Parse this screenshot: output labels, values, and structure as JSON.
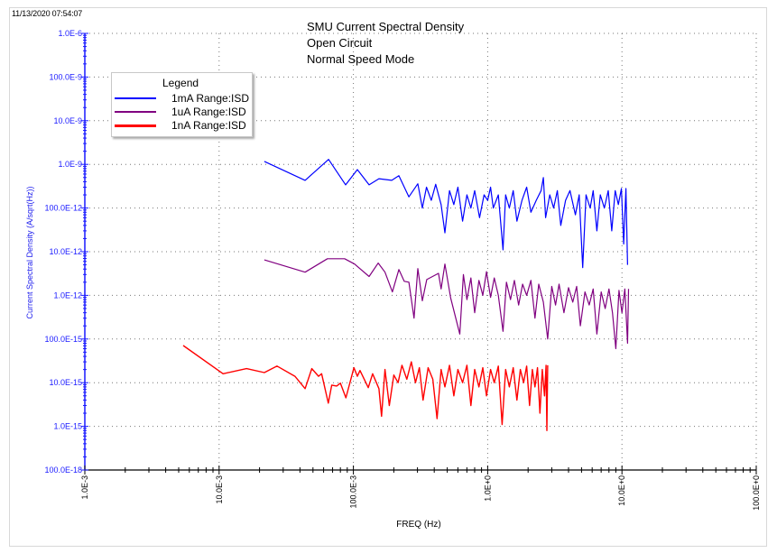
{
  "timestamp": "11/13/2020 07:54:07",
  "chart_data": {
    "type": "line",
    "title": [
      "SMU Current Spectral Density",
      "Open Circuit",
      "Normal Speed Mode"
    ],
    "xlabel": "FREQ (Hz)",
    "ylabel": "Current Spectral Density (A/sqrt(Hz))",
    "x_scale": "log",
    "y_scale": "log",
    "xlim": [
      0.001,
      100
    ],
    "ylim": [
      1e-16,
      1e-06
    ],
    "x_tick_values": [
      0.001,
      0.01,
      0.1,
      1,
      10,
      100
    ],
    "x_tick_labels": [
      "1.0E-3",
      "10.0E-3",
      "100.0E-3",
      "1.0E+0",
      "10.0E+0",
      "100.0E+0"
    ],
    "y_tick_values": [
      1e-06,
      1e-07,
      1e-08,
      1e-09,
      1e-10,
      1e-11,
      1e-12,
      1e-13,
      1e-14,
      1e-15,
      1e-16
    ],
    "y_tick_labels": [
      "1.0E-6",
      "100.0E-9",
      "10.0E-9",
      "1.0E-9",
      "100.0E-12",
      "10.0E-12",
      "1.0E-12",
      "100.0E-15",
      "10.0E-15",
      "1.0E-15",
      "100.0E-18"
    ],
    "grid": true,
    "legend": {
      "title": "Legend",
      "placement": "top-left"
    },
    "colors": {
      "x_axis": "#000000",
      "y_axis": "#1a1aff",
      "grid": "#888888"
    },
    "series": [
      {
        "name": "1mA Range:ISD",
        "color": "#0000ff",
        "points": [
          [
            0.0217,
            1.17e-09
          ],
          [
            0.0437,
            4.3e-10
          ],
          [
            0.0653,
            1.3e-09
          ],
          [
            0.0875,
            3.4e-10
          ],
          [
            0.107,
            7.6e-10
          ],
          [
            0.131,
            3.4e-10
          ],
          [
            0.155,
            4.7e-10
          ],
          [
            0.193,
            4.3e-10
          ],
          [
            0.218,
            5.5e-10
          ],
          [
            0.259,
            1.8e-10
          ],
          [
            0.302,
            3.6e-10
          ],
          [
            0.326,
            1e-10
          ],
          [
            0.35,
            3e-10
          ],
          [
            0.38,
            1.5e-10
          ],
          [
            0.41,
            3.5e-10
          ],
          [
            0.45,
            1.2e-10
          ],
          [
            0.48,
            2.7e-11
          ],
          [
            0.52,
            2.5e-10
          ],
          [
            0.56,
            1.2e-10
          ],
          [
            0.6,
            3e-10
          ],
          [
            0.65,
            5e-11
          ],
          [
            0.7,
            2e-10
          ],
          [
            0.75,
            1e-10
          ],
          [
            0.8,
            2.5e-10
          ],
          [
            0.87,
            6e-11
          ],
          [
            0.94,
            2e-10
          ],
          [
            1.0,
            1.5e-10
          ],
          [
            1.05,
            3e-10
          ],
          [
            1.1,
            1e-10
          ],
          [
            1.2,
            2e-10
          ],
          [
            1.3,
            1.1e-11
          ],
          [
            1.36,
            2e-10
          ],
          [
            1.45,
            1e-10
          ],
          [
            1.55,
            2.5e-10
          ],
          [
            1.65,
            5e-11
          ],
          [
            1.8,
            1.5e-10
          ],
          [
            1.95,
            3e-10
          ],
          [
            2.1,
            8e-11
          ],
          [
            2.3,
            1.5e-10
          ],
          [
            2.5,
            2.5e-10
          ],
          [
            2.6,
            5e-10
          ],
          [
            2.7,
            6e-11
          ],
          [
            2.9,
            2e-10
          ],
          [
            3.1,
            1e-10
          ],
          [
            3.3,
            2.5e-10
          ],
          [
            3.5,
            4e-11
          ],
          [
            3.8,
            1.5e-10
          ],
          [
            4.1,
            2.5e-10
          ],
          [
            4.5,
            7e-11
          ],
          [
            4.8,
            2e-10
          ],
          [
            5.1,
            4.3e-12
          ],
          [
            5.4,
            2e-10
          ],
          [
            5.8,
            1e-10
          ],
          [
            6.1,
            2.5e-10
          ],
          [
            6.5,
            3e-11
          ],
          [
            6.9,
            2e-10
          ],
          [
            7.4,
            1e-10
          ],
          [
            7.9,
            2.5e-10
          ],
          [
            8.4,
            3e-11
          ],
          [
            8.9,
            2.5e-10
          ],
          [
            9.4,
            1.2e-10
          ],
          [
            9.9,
            2.8e-10
          ],
          [
            10.3,
            1.5e-11
          ],
          [
            10.7,
            2.8e-10
          ],
          [
            11.0,
            5e-12
          ]
        ]
      },
      {
        "name": "1uA Range:ISD",
        "color": "#800080",
        "points": [
          [
            0.0217,
            6.5e-12
          ],
          [
            0.0437,
            3.4e-12
          ],
          [
            0.064,
            6.9e-12
          ],
          [
            0.086,
            6.9e-12
          ],
          [
            0.102,
            5.2e-12
          ],
          [
            0.131,
            2.7e-12
          ],
          [
            0.153,
            5.5e-12
          ],
          [
            0.172,
            3.4e-12
          ],
          [
            0.195,
            1.2e-12
          ],
          [
            0.218,
            3.9e-12
          ],
          [
            0.239,
            2.1e-12
          ],
          [
            0.259,
            2e-12
          ],
          [
            0.283,
            3e-13
          ],
          [
            0.302,
            4.1e-12
          ],
          [
            0.326,
            7.5e-13
          ],
          [
            0.352,
            2.3e-12
          ],
          [
            0.43,
            3.2e-12
          ],
          [
            0.45,
            1.4e-12
          ],
          [
            0.48,
            5.2e-12
          ],
          [
            0.53,
            8.7e-13
          ],
          [
            0.62,
            1.3e-13
          ],
          [
            0.66,
            3e-12
          ],
          [
            0.7,
            8e-13
          ],
          [
            0.75,
            2.5e-12
          ],
          [
            0.8,
            4e-13
          ],
          [
            0.86,
            2.2e-12
          ],
          [
            0.92,
            1e-12
          ],
          [
            0.98,
            3.5e-12
          ],
          [
            1.05,
            9e-13
          ],
          [
            1.12,
            2.5e-12
          ],
          [
            1.2,
            1e-12
          ],
          [
            1.3,
            1.5e-13
          ],
          [
            1.38,
            2e-12
          ],
          [
            1.48,
            8e-13
          ],
          [
            1.58,
            2.2e-12
          ],
          [
            1.7,
            6e-13
          ],
          [
            1.82,
            1.8e-12
          ],
          [
            1.95,
            1e-12
          ],
          [
            2.1,
            2.2e-12
          ],
          [
            2.25,
            3e-13
          ],
          [
            2.4,
            1.8e-12
          ],
          [
            2.6,
            7e-13
          ],
          [
            2.8,
            1e-13
          ],
          [
            3.0,
            1.6e-12
          ],
          [
            3.2,
            6e-13
          ],
          [
            3.4,
            1.8e-12
          ],
          [
            3.7,
            4e-13
          ],
          [
            4.0,
            1.5e-12
          ],
          [
            4.3,
            7e-13
          ],
          [
            4.6,
            1.6e-12
          ],
          [
            4.9,
            2e-13
          ],
          [
            5.3,
            1.2e-12
          ],
          [
            5.7,
            6e-13
          ],
          [
            6.1,
            1.4e-12
          ],
          [
            6.5,
            1.3e-13
          ],
          [
            7.0,
            1.2e-12
          ],
          [
            7.5,
            5e-13
          ],
          [
            8.0,
            1.4e-12
          ],
          [
            8.5,
            4e-13
          ],
          [
            9.0,
            6e-14
          ],
          [
            9.5,
            1.3e-12
          ],
          [
            10.0,
            4e-13
          ],
          [
            10.5,
            1.4e-12
          ],
          [
            11.0,
            8e-14
          ],
          [
            11.2,
            1.4e-12
          ]
        ]
      },
      {
        "name": "1nA Range:ISD",
        "color": "#ff0000",
        "points": [
          [
            0.0054,
            7.1e-14
          ],
          [
            0.0107,
            1.6e-14
          ],
          [
            0.016,
            2.1e-14
          ],
          [
            0.0217,
            1.7e-14
          ],
          [
            0.027,
            2.4e-14
          ],
          [
            0.0367,
            1.4e-14
          ],
          [
            0.0437,
            7.3e-15
          ],
          [
            0.049,
            2.1e-14
          ],
          [
            0.055,
            1.4e-14
          ],
          [
            0.058,
            1.6e-14
          ],
          [
            0.065,
            3.4e-15
          ],
          [
            0.069,
            8.8e-15
          ],
          [
            0.075,
            8.4e-15
          ],
          [
            0.08,
            9.7e-15
          ],
          [
            0.088,
            4.5e-15
          ],
          [
            0.101,
            2.2e-14
          ],
          [
            0.107,
            1.4e-14
          ],
          [
            0.112,
            1.9e-14
          ],
          [
            0.129,
            7.7e-15
          ],
          [
            0.139,
            1.6e-14
          ],
          [
            0.155,
            7.3e-15
          ],
          [
            0.162,
            1.7e-15
          ],
          [
            0.172,
            2e-14
          ],
          [
            0.185,
            3e-15
          ],
          [
            0.2,
            1.5e-14
          ],
          [
            0.215,
            1e-14
          ],
          [
            0.23,
            2.5e-14
          ],
          [
            0.25,
            1.2e-14
          ],
          [
            0.27,
            3e-14
          ],
          [
            0.29,
            1e-14
          ],
          [
            0.31,
            2.2e-14
          ],
          [
            0.33,
            4e-15
          ],
          [
            0.36,
            2.2e-14
          ],
          [
            0.39,
            1.2e-14
          ],
          [
            0.42,
            1.5e-15
          ],
          [
            0.45,
            2e-14
          ],
          [
            0.48,
            8e-15
          ],
          [
            0.52,
            2.5e-14
          ],
          [
            0.56,
            5e-15
          ],
          [
            0.6,
            2e-14
          ],
          [
            0.65,
            1e-14
          ],
          [
            0.7,
            2.5e-14
          ],
          [
            0.75,
            3e-15
          ],
          [
            0.8,
            2e-14
          ],
          [
            0.86,
            8e-15
          ],
          [
            0.92,
            2.2e-14
          ],
          [
            0.98,
            5e-15
          ],
          [
            1.05,
            2e-14
          ],
          [
            1.12,
            1e-14
          ],
          [
            1.2,
            2.4e-14
          ],
          [
            1.28,
            1.1e-15
          ],
          [
            1.36,
            2e-14
          ],
          [
            1.45,
            8e-15
          ],
          [
            1.55,
            2.2e-14
          ],
          [
            1.65,
            4e-15
          ],
          [
            1.75,
            2e-14
          ],
          [
            1.85,
            1e-14
          ],
          [
            1.95,
            2.4e-14
          ],
          [
            2.05,
            3e-15
          ],
          [
            2.15,
            2e-14
          ],
          [
            2.25,
            8e-15
          ],
          [
            2.35,
            2.2e-14
          ],
          [
            2.45,
            2e-15
          ],
          [
            2.55,
            2e-14
          ],
          [
            2.65,
            5e-15
          ],
          [
            2.72,
            2.5e-14
          ],
          [
            2.76,
            8e-16
          ],
          [
            2.8,
            2.5e-14
          ]
        ]
      }
    ]
  }
}
